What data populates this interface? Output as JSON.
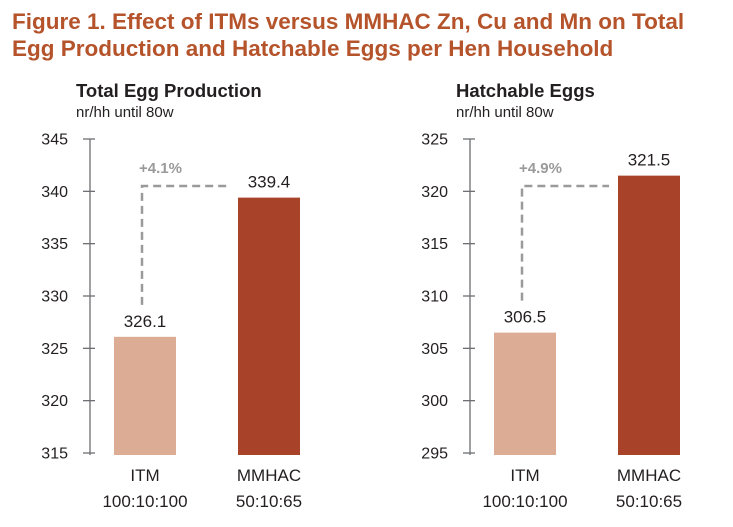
{
  "figure": {
    "title_line1": "Figure 1. Effect of ITMs versus MMHAC Zn, Cu and Mn on Total",
    "title_line2": "Egg Production and Hatchable Eggs per Hen Household"
  },
  "colors": {
    "title": "#b5532b",
    "itm_bar": "#ddac94",
    "mmhac_bar": "#a8432a",
    "dashed": "#9a9a9a",
    "axis": "#6d6e71"
  },
  "chart_data": [
    {
      "type": "bar",
      "title": "Total Egg Production",
      "subtitle": "nr/hh until 80w",
      "categories": [
        "ITM",
        "MMHAC"
      ],
      "category_sublabels": [
        "100:10:100",
        "50:10:65"
      ],
      "values": [
        326.1,
        339.4
      ],
      "value_labels": [
        "326.1",
        "339.4"
      ],
      "ylim": [
        315,
        345
      ],
      "yticks": [
        315,
        320,
        325,
        330,
        335,
        340,
        345
      ],
      "annotation": "+4.1%",
      "grid": false,
      "legend": "none"
    },
    {
      "type": "bar",
      "title": "Hatchable Eggs",
      "subtitle": "nr/hh until 80w",
      "categories": [
        "ITM",
        "MMHAC"
      ],
      "category_sublabels": [
        "100:10:100",
        "50:10:65"
      ],
      "values": [
        306.5,
        321.5
      ],
      "value_labels": [
        "306.5",
        "321.5"
      ],
      "ylim": [
        295,
        325
      ],
      "yticks": [
        295,
        300,
        305,
        310,
        315,
        320,
        325
      ],
      "annotation": "+4.9%",
      "grid": false,
      "legend": "none"
    }
  ]
}
